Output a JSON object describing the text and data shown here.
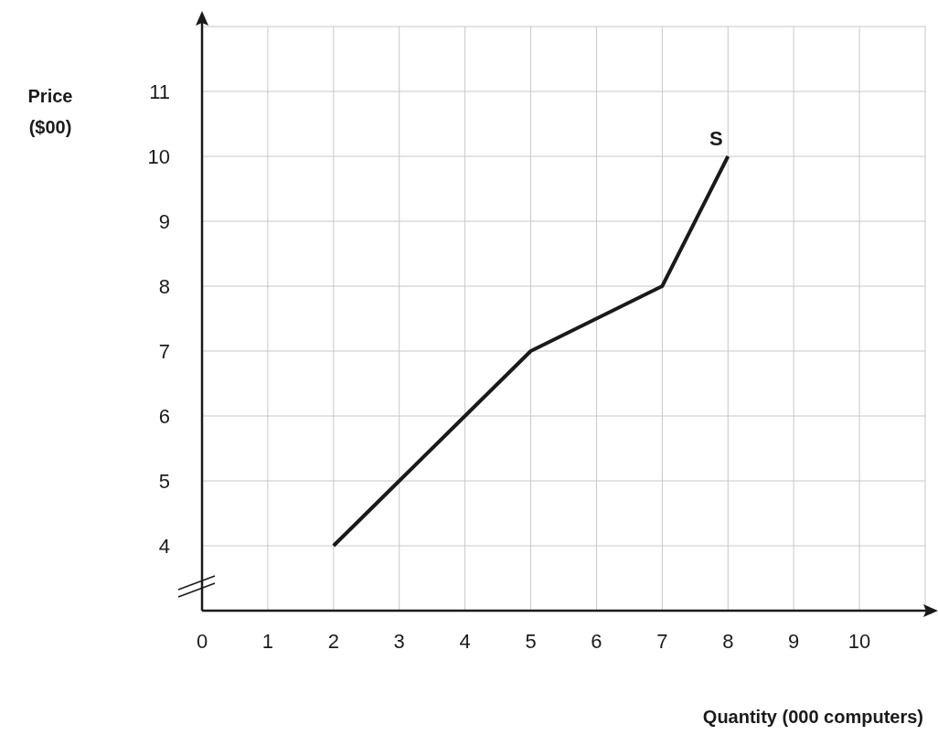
{
  "chart_data": {
    "type": "line",
    "xlabel": "Quantity (000 computers)",
    "ylabel": "Price\n($00)",
    "x": [
      2,
      3,
      4,
      5,
      7,
      8
    ],
    "series": [
      {
        "color": "#1a1a1a",
        "values": [
          4,
          5,
          6,
          7,
          8,
          10
        ]
      }
    ],
    "xlim": [
      0,
      11
    ],
    "xticks": [
      0,
      1,
      2,
      3,
      4,
      5,
      6,
      7,
      8,
      9,
      10
    ],
    "ylim": [
      3,
      12
    ],
    "yticks": [
      4,
      5,
      6,
      7,
      8,
      9,
      10,
      11
    ],
    "grid": true,
    "marker": "none",
    "line_style": "solid",
    "annotations": [
      {
        "text": "S",
        "x": 8,
        "y": 10
      }
    ]
  }
}
